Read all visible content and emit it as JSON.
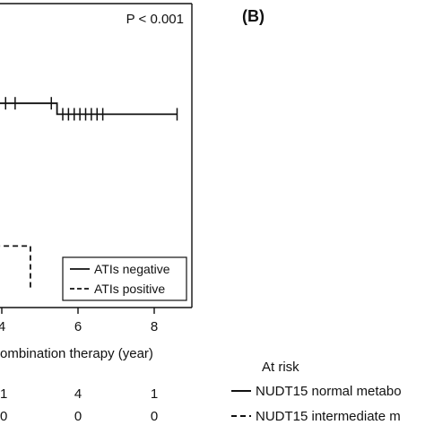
{
  "panel_b_label": "(B)",
  "p_value_label": "P < 0.001",
  "chart_data": {
    "type": "line",
    "chart_kind": "kaplan-meier",
    "xlabel": "ombination therapy (year)",
    "x_ticks": [
      "4",
      "6",
      "8"
    ],
    "x_tick_values": [
      4,
      6,
      8
    ],
    "xlim": [
      2.5,
      9.0
    ],
    "ylim": [
      0,
      1.0
    ],
    "grid": false,
    "legend_position": "bottom-right",
    "series": [
      {
        "name": "ATIs negative",
        "line_style": "solid",
        "steps": [
          [
            2.5,
            0.84
          ],
          [
            5.45,
            0.84
          ],
          [
            5.45,
            0.79
          ],
          [
            8.6,
            0.79
          ]
        ],
        "censor_times": [
          2.55,
          2.75,
          2.95,
          3.1,
          3.3,
          3.5,
          3.7,
          3.9,
          4.1,
          4.35,
          5.3,
          5.6,
          5.75,
          5.9,
          6.05,
          6.2,
          6.35,
          6.5,
          6.65,
          8.6
        ]
      },
      {
        "name": "ATIs positive",
        "line_style": "dashed",
        "steps": [
          [
            2.5,
            0.37
          ],
          [
            3.1,
            0.37
          ],
          [
            3.1,
            0.28
          ],
          [
            3.3,
            0.28
          ],
          [
            3.3,
            0.19
          ],
          [
            4.75,
            0.19
          ],
          [
            4.75,
            0.0
          ]
        ],
        "censor_times": []
      }
    ]
  },
  "risk_table": {
    "header": "At risk",
    "rows": [
      {
        "first_value": "1",
        "values": [
          "4",
          "1"
        ]
      },
      {
        "first_value": "0",
        "values": [
          "0",
          "0"
        ]
      }
    ]
  },
  "panel_b_legend": {
    "entries": [
      {
        "label": "NUDT15 normal metabo",
        "line_style": "solid"
      },
      {
        "label": "NUDT15 intermediate m",
        "line_style": "dashed"
      }
    ]
  }
}
